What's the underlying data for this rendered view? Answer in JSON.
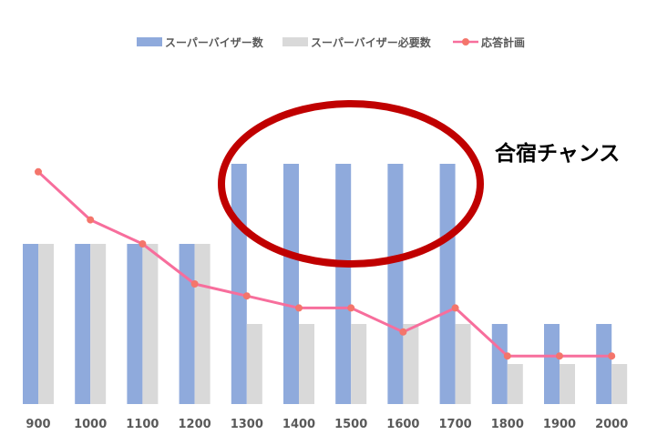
{
  "chart_data": {
    "type": "bar",
    "categories": [
      "900",
      "1000",
      "1100",
      "1200",
      "1300",
      "1400",
      "1500",
      "1600",
      "1700",
      "1800",
      "1900",
      "2000"
    ],
    "series": [
      {
        "name": "スーパーバイザー数",
        "kind": "bar",
        "color": "#8FAADC",
        "values": [
          4,
          4,
          4,
          4,
          6,
          6,
          6,
          6,
          6,
          2,
          2,
          2
        ]
      },
      {
        "name": "スーパーバイザー必要数",
        "kind": "bar",
        "color": "#D9D9D9",
        "values": [
          4,
          4,
          4,
          4,
          2,
          2,
          2,
          2,
          2,
          1,
          1,
          1
        ]
      },
      {
        "name": "応答計画",
        "kind": "line",
        "color": "#F76E9C",
        "marker_color": "#F4756B",
        "values": [
          5.8,
          4.6,
          4.0,
          3.0,
          2.7,
          2.4,
          2.4,
          1.8,
          2.4,
          1.2,
          1.2,
          1.2
        ]
      }
    ],
    "ylim": [
      0,
      8.5
    ],
    "grid": false,
    "legend": "top-center",
    "annotation": {
      "text": "合宿チャンス",
      "shape": "ellipse",
      "color": "#C00000",
      "encloses_categories": [
        "1300",
        "1400",
        "1500",
        "1600",
        "1700"
      ]
    }
  }
}
